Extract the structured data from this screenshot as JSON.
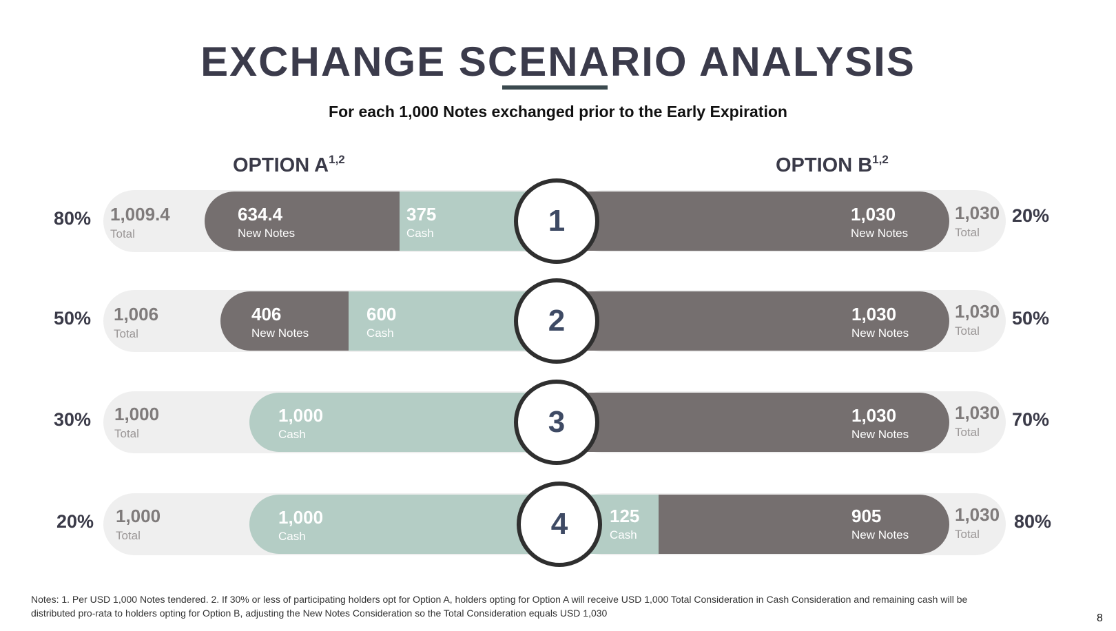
{
  "header": {
    "title": "EXCHANGE SCENARIO ANALYSIS",
    "subtitle": "For each 1,000 Notes exchanged prior to the Early Expiration"
  },
  "options": {
    "a_label": "OPTION A",
    "a_sup": "1,2",
    "b_label": "OPTION B",
    "b_sup": "1,2"
  },
  "scenarios": [
    {
      "number": "1",
      "a_pct": "80%",
      "a_total": "1,009.4",
      "a_total_label": "Total",
      "a_notes": "634.4",
      "a_notes_label": "New Notes",
      "a_cash": "375",
      "a_cash_label": "Cash",
      "b_cash": "",
      "b_cash_label": "",
      "b_notes": "1,030",
      "b_notes_label": "New Notes",
      "b_total": "1,030",
      "b_total_label": "Total",
      "b_pct": "20%"
    },
    {
      "number": "2",
      "a_pct": "50%",
      "a_total": "1,006",
      "a_total_label": "Total",
      "a_notes": "406",
      "a_notes_label": "New Notes",
      "a_cash": "600",
      "a_cash_label": "Cash",
      "b_cash": "",
      "b_cash_label": "",
      "b_notes": "1,030",
      "b_notes_label": "New Notes",
      "b_total": "1,030",
      "b_total_label": "Total",
      "b_pct": "50%"
    },
    {
      "number": "3",
      "a_pct": "30%",
      "a_total": "1,000",
      "a_total_label": "Total",
      "a_notes": "",
      "a_notes_label": "",
      "a_cash": "1,000",
      "a_cash_label": "Cash",
      "b_cash": "",
      "b_cash_label": "",
      "b_notes": "1,030",
      "b_notes_label": "New Notes",
      "b_total": "1,030",
      "b_total_label": "Total",
      "b_pct": "70%"
    },
    {
      "number": "4",
      "a_pct": "20%",
      "a_total": "1,000",
      "a_total_label": "Total",
      "a_notes": "",
      "a_notes_label": "",
      "a_cash": "1,000",
      "a_cash_label": "Cash",
      "b_cash": "125",
      "b_cash_label": "Cash",
      "b_notes": "905",
      "b_notes_label": "New Notes",
      "b_total": "1,030",
      "b_total_label": "Total",
      "b_pct": "80%"
    }
  ],
  "footer": {
    "notes": "Notes: 1. Per USD 1,000 Notes tendered. 2. If 30% or less of participating holders opt for Option A, holders opting for Option A will receive USD 1,000 Total Consideration in Cash Consideration and remaining cash will be distributed pro-rata to holders opting for Option B, adjusting the New Notes Consideration so the Total Consideration equals USD 1,030",
    "page_number": "8"
  },
  "colors": {
    "notes_segment": "#756f6f",
    "cash_segment": "#b4cdc5",
    "pill_background": "#efefef",
    "circle_border": "#2f2f2f",
    "number_text": "#3e4a64"
  }
}
